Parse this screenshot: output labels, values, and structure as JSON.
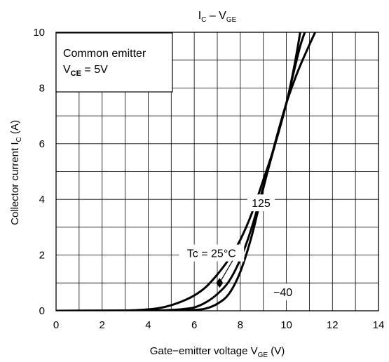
{
  "chart_data": {
    "type": "line",
    "title_main": "I",
    "title_main_sub": "C",
    "title_sep": " – ",
    "title_var": "V",
    "title_var_sub": "GE",
    "xlabel_main": "Gate−emitter voltage  V",
    "xlabel_sub": "GE",
    "xlabel_unit": " (V)",
    "ylabel_main": "Collector current  I",
    "ylabel_sub": "C",
    "ylabel_unit": " (A)",
    "xlim": [
      0,
      14
    ],
    "ylim": [
      0,
      10
    ],
    "x_ticks": [
      0,
      2,
      4,
      6,
      8,
      10,
      12,
      14
    ],
    "y_ticks": [
      0,
      2,
      4,
      6,
      8,
      10
    ],
    "x_minor_step": 1,
    "y_minor_step": 1,
    "grid": true,
    "legend_box": {
      "line1": "Common emitter",
      "line2_main": "V",
      "line2_sub": "CE",
      "line2_rest": " = 5V"
    },
    "series": [
      {
        "name": "125",
        "x": [
          0,
          3,
          4,
          4.5,
          5,
          5.5,
          6,
          6.5,
          7,
          7.5,
          8,
          8.5,
          9,
          9.5,
          10,
          10.3,
          10.5,
          10.6
        ],
        "y": [
          0,
          0.01,
          0.05,
          0.1,
          0.2,
          0.35,
          0.55,
          0.85,
          1.3,
          1.85,
          2.55,
          3.5,
          4.7,
          5.95,
          7.45,
          8.6,
          9.5,
          10
        ]
      },
      {
        "name": "25",
        "x": [
          0,
          4,
          5,
          5.5,
          6,
          6.5,
          7,
          7.5,
          8,
          8.5,
          9,
          9.5,
          10,
          10.3,
          10.6,
          10.8
        ],
        "y": [
          0,
          0.01,
          0.03,
          0.06,
          0.12,
          0.3,
          0.6,
          1.05,
          1.85,
          3.0,
          4.45,
          5.95,
          7.45,
          8.5,
          9.5,
          10
        ]
      },
      {
        "name": "−40",
        "x": [
          0,
          5,
          6,
          6.5,
          7,
          7.5,
          8,
          8.5,
          9,
          9.5,
          10,
          10.5,
          11,
          11.25
        ],
        "y": [
          0,
          0.01,
          0.03,
          0.08,
          0.25,
          0.6,
          1.4,
          2.7,
          4.4,
          6.0,
          7.45,
          8.6,
          9.55,
          10
        ]
      }
    ],
    "curve_labels": [
      {
        "text": "125",
        "x": 8.9,
        "y": 3.85
      },
      {
        "text": "Tc = 25°C",
        "x": 6.75,
        "y": 2.05
      },
      {
        "text": "−40",
        "x": 9.85,
        "y": 0.65
      }
    ],
    "marker": {
      "x": 7.1,
      "y": 1.0
    }
  }
}
